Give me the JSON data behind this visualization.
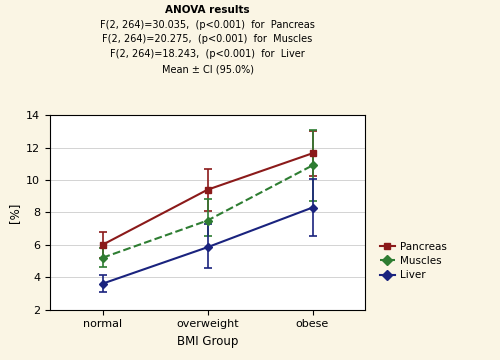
{
  "title_lines": [
    "ANOVA results",
    "F(2, 264)=30.035,  (p<0.001)  for  Pancreas",
    "F(2, 264)=20.275,  (p<0.001)  for  Muscles",
    "F(2, 264)=18.243,  (p<0.001)  for  Liver",
    "Mean ± CI (95.0%)"
  ],
  "x_labels": [
    "normal",
    "overweight",
    "obese"
  ],
  "x_positions": [
    1,
    2,
    3
  ],
  "pancreas_means": [
    6.0,
    9.4,
    11.65
  ],
  "pancreas_lower": [
    5.2,
    8.1,
    10.25
  ],
  "pancreas_upper": [
    6.8,
    10.7,
    13.05
  ],
  "muscles_means": [
    5.2,
    7.5,
    10.9
  ],
  "muscles_lower": [
    4.6,
    6.55,
    8.7
  ],
  "muscles_upper": [
    5.8,
    8.85,
    13.1
  ],
  "liver_means": [
    3.6,
    5.85,
    8.3
  ],
  "liver_lower": [
    3.1,
    4.55,
    6.55
  ],
  "liver_upper": [
    4.15,
    7.3,
    10.05
  ],
  "pancreas_color": "#8B1A1A",
  "muscles_color": "#2E7D32",
  "liver_color": "#1A237E",
  "ylim": [
    2,
    14
  ],
  "yticks": [
    2,
    4,
    6,
    8,
    10,
    12,
    14
  ],
  "ylabel": "[%]",
  "xlabel": "BMI Group",
  "background_color": "#FAF5E4",
  "plot_bg_color": "#FFFFFF",
  "title_fontsize": 7.5,
  "subtitle_fontsize": 7.0,
  "tick_fontsize": 8,
  "label_fontsize": 8.5,
  "legend_fontsize": 7.5
}
